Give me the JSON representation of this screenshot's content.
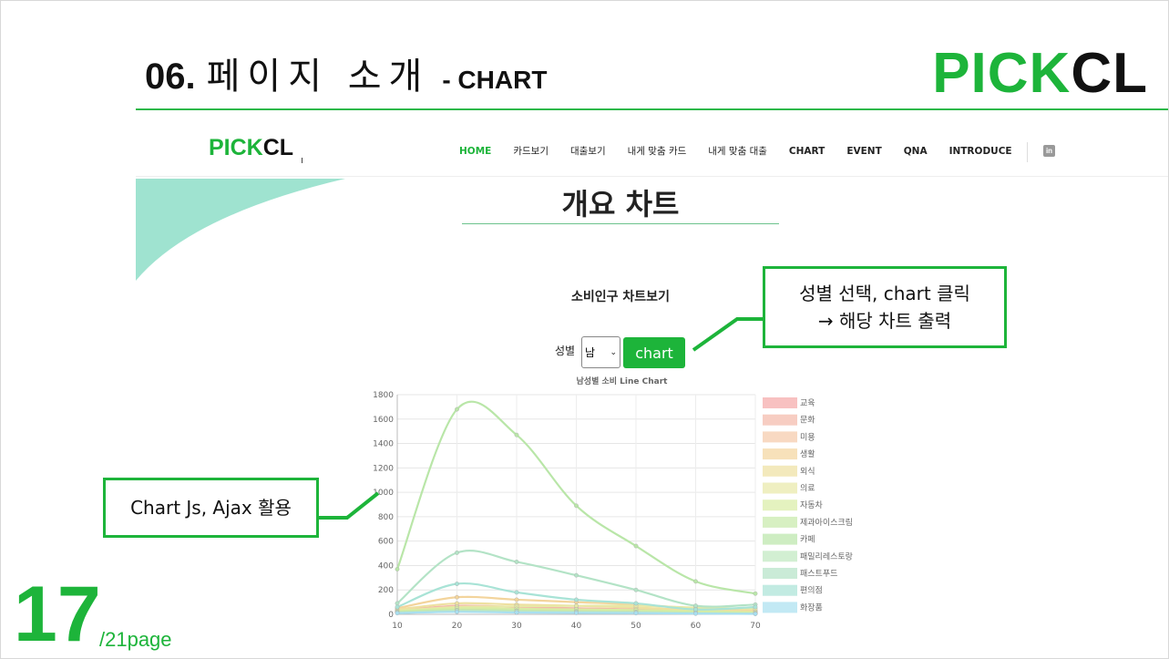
{
  "slide": {
    "number_prefix": "06.",
    "title_kr": "페이지 소개",
    "subtitle": "- CHART",
    "brand_green": "PICK",
    "brand_black": "CL",
    "page_number": "17",
    "page_total": "/21page"
  },
  "site": {
    "logo_green": "PICK",
    "logo_black": "CL",
    "nav": [
      {
        "label": "HOME",
        "active": true
      },
      {
        "label": "카드보기"
      },
      {
        "label": "대출보기"
      },
      {
        "label": "내게 맞춤 카드"
      },
      {
        "label": "내게 맞춤 대출"
      },
      {
        "label": "CHART"
      },
      {
        "label": "EVENT"
      },
      {
        "label": "QNA"
      },
      {
        "label": "INTRODUCE"
      }
    ],
    "social_icon": "linkedin-icon",
    "heading": "개요 차트",
    "section_title": "소비인구 차트보기",
    "gender_label": "성별",
    "gender_value": "남",
    "chart_button": "chart"
  },
  "callouts": {
    "top_line1": "성별 선택, chart 클릭",
    "top_line2": "→ 해당 차트 출력",
    "left": "Chart Js, Ajax 활용"
  },
  "colors": {
    "accent": "#1db43a",
    "callout_border": "#1db43a"
  },
  "chart_data": {
    "type": "line",
    "title": "남성별 소비 Line Chart",
    "x": [
      10,
      20,
      30,
      40,
      50,
      60,
      70
    ],
    "ylim": [
      0,
      1800
    ],
    "yticks": [
      0,
      200,
      400,
      600,
      800,
      1000,
      1200,
      1400,
      1600,
      1800
    ],
    "grid": true,
    "legend_position": "right",
    "series": [
      {
        "name": "교육",
        "color": "#f5a6a6",
        "values": [
          20,
          40,
          35,
          30,
          25,
          15,
          10
        ]
      },
      {
        "name": "문화",
        "color": "#f3b8a8",
        "values": [
          30,
          70,
          60,
          50,
          40,
          25,
          15
        ]
      },
      {
        "name": "미용",
        "color": "#f5c9a8",
        "values": [
          15,
          25,
          20,
          18,
          15,
          10,
          5
        ]
      },
      {
        "name": "생활",
        "color": "#f3d49c",
        "values": [
          50,
          140,
          120,
          100,
          80,
          50,
          30
        ]
      },
      {
        "name": "외식",
        "color": "#eee0a0",
        "values": [
          40,
          90,
          80,
          70,
          55,
          35,
          25
        ]
      },
      {
        "name": "의료",
        "color": "#e8e8a6",
        "values": [
          30,
          60,
          65,
          70,
          70,
          55,
          45
        ]
      },
      {
        "name": "자동차",
        "color": "#d8eca4",
        "values": [
          25,
          50,
          45,
          40,
          35,
          25,
          15
        ]
      },
      {
        "name": "제과아이스크림",
        "color": "#c6e9a8",
        "values": [
          20,
          35,
          30,
          25,
          20,
          12,
          8
        ]
      },
      {
        "name": "카페",
        "color": "#b9e6a8",
        "values": [
          370,
          1680,
          1470,
          890,
          560,
          270,
          170
        ]
      },
      {
        "name": "패밀리레스토랑",
        "color": "#bfe8bf",
        "values": [
          15,
          30,
          25,
          20,
          18,
          10,
          6
        ]
      },
      {
        "name": "패스트푸드",
        "color": "#b3e3c6",
        "values": [
          90,
          505,
          430,
          320,
          200,
          70,
          80
        ]
      },
      {
        "name": "편의점",
        "color": "#a8e3d6",
        "values": [
          60,
          250,
          180,
          120,
          90,
          40,
          60
        ]
      },
      {
        "name": "화장품",
        "color": "#a8dff0",
        "values": [
          10,
          20,
          15,
          12,
          10,
          6,
          4
        ]
      }
    ]
  }
}
